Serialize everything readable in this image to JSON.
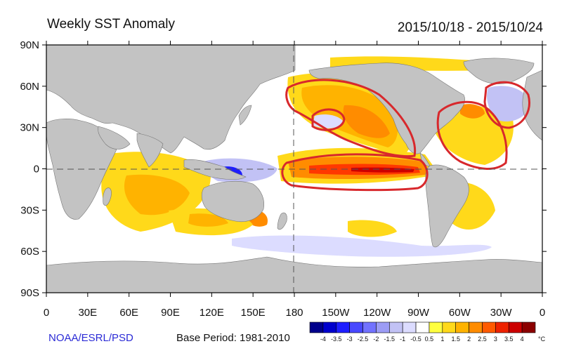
{
  "header": {
    "title": "Weekly SST Anomaly",
    "date_range": "2015/10/18 - 2015/10/24"
  },
  "footer": {
    "credit": "NOAA/ESRL/PSD",
    "base_period": "Base Period: 1981-2010"
  },
  "axes": {
    "lat_labels": [
      "90N",
      "60N",
      "30N",
      "0",
      "30S",
      "60S",
      "90S"
    ],
    "lon_labels": [
      "0",
      "30E",
      "60E",
      "90E",
      "120E",
      "150E",
      "180",
      "150W",
      "120W",
      "90W",
      "60W",
      "30W",
      "0"
    ]
  },
  "colorbar": {
    "unit": "°C",
    "tick_labels": [
      "-4",
      "-3.5",
      "-3",
      "-2.5",
      "-2",
      "-1.5",
      "-1",
      "-0.5",
      "0.5",
      "1",
      "1.5",
      "2",
      "2.5",
      "3",
      "3.5",
      "4"
    ],
    "colors": [
      "#00008b",
      "#0000cd",
      "#1e1eff",
      "#4848ff",
      "#7272ff",
      "#9c9cf5",
      "#c2c2f5",
      "#dcdcff",
      "#ffffff",
      "#ffff40",
      "#ffd91a",
      "#ffb300",
      "#ff8c00",
      "#ff5a00",
      "#ee2200",
      "#cc0000",
      "#8b0000"
    ]
  },
  "colors": {
    "land": "#c3c3c3",
    "ocean": "#ffffff",
    "annotation": "#d8282c",
    "frame": "#000000"
  }
}
